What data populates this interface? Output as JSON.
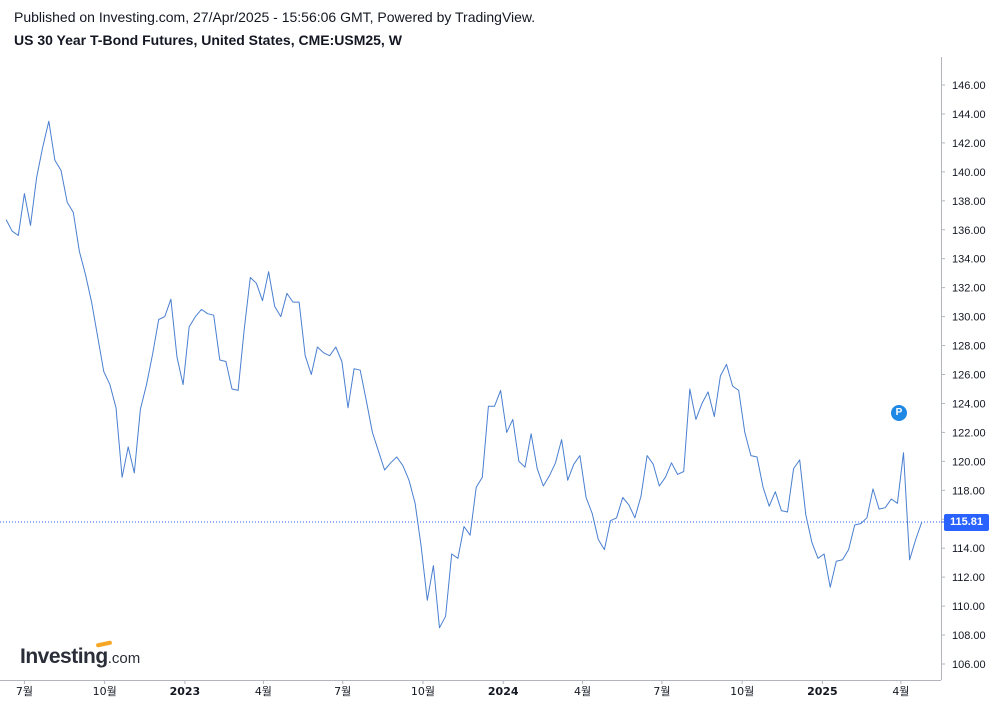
{
  "header": {
    "published": "Published on Investing.com, 27/Apr/2025 - 15:56:06 GMT, Powered by TradingView.",
    "title": "US 30 Year T-Bond Futures, United States, CME:USM25, W"
  },
  "logo": {
    "brand": "Investing",
    "suffix": ".com"
  },
  "price_badge": "P",
  "chart_data": {
    "type": "line",
    "title": "US 30 Year T-Bond Futures, United States, CME:USM25, W",
    "xlabel": "",
    "ylabel": "",
    "ylim": [
      105,
      147
    ],
    "y_ticks": [
      "106.00",
      "108.00",
      "110.00",
      "112.00",
      "114.00",
      "116.00",
      "118.00",
      "120.00",
      "122.00",
      "124.00",
      "126.00",
      "128.00",
      "130.00",
      "132.00",
      "134.00",
      "136.00",
      "138.00",
      "140.00",
      "142.00",
      "144.00",
      "146.00"
    ],
    "x_ticks": [
      {
        "label": "7월",
        "date": "2022-07-01",
        "bold": false
      },
      {
        "label": "10월",
        "date": "2022-10-01",
        "bold": false
      },
      {
        "label": "2023",
        "date": "2023-01-01",
        "bold": true
      },
      {
        "label": "4월",
        "date": "2023-04-01",
        "bold": false
      },
      {
        "label": "7월",
        "date": "2023-07-01",
        "bold": false
      },
      {
        "label": "10월",
        "date": "2023-10-01",
        "bold": false
      },
      {
        "label": "2024",
        "date": "2024-01-01",
        "bold": true
      },
      {
        "label": "4월",
        "date": "2024-04-01",
        "bold": false
      },
      {
        "label": "7월",
        "date": "2024-07-01",
        "bold": false
      },
      {
        "label": "10월",
        "date": "2024-10-01",
        "bold": false
      },
      {
        "label": "2025",
        "date": "2025-01-01",
        "bold": true
      },
      {
        "label": "4월",
        "date": "2025-04-01",
        "bold": false
      }
    ],
    "xlim": [
      "2022-06-03",
      "2025-05-17"
    ],
    "last_price": 115.81,
    "last_price_label": "115.81",
    "colors": {
      "line": "#4a7fd0",
      "price_line": "#2962ff",
      "price_tag": "#2962ff",
      "grid_axis": "#b2b5be"
    },
    "grid": false,
    "series": [
      {
        "values": [
          {
            "x": "2022-06-10",
            "y": 136.7
          },
          {
            "x": "2022-06-17",
            "y": 135.9
          },
          {
            "x": "2022-06-24",
            "y": 135.6
          },
          {
            "x": "2022-07-01",
            "y": 138.5
          },
          {
            "x": "2022-07-08",
            "y": 136.3
          },
          {
            "x": "2022-07-15",
            "y": 139.6
          },
          {
            "x": "2022-07-22",
            "y": 141.7
          },
          {
            "x": "2022-07-29",
            "y": 143.5
          },
          {
            "x": "2022-08-05",
            "y": 140.8
          },
          {
            "x": "2022-08-12",
            "y": 140.1
          },
          {
            "x": "2022-08-19",
            "y": 137.9
          },
          {
            "x": "2022-08-26",
            "y": 137.2
          },
          {
            "x": "2022-09-02",
            "y": 134.5
          },
          {
            "x": "2022-09-09",
            "y": 132.9
          },
          {
            "x": "2022-09-16",
            "y": 131.0
          },
          {
            "x": "2022-09-23",
            "y": 128.6
          },
          {
            "x": "2022-09-30",
            "y": 126.2
          },
          {
            "x": "2022-10-07",
            "y": 125.3
          },
          {
            "x": "2022-10-14",
            "y": 123.7
          },
          {
            "x": "2022-10-21",
            "y": 118.9
          },
          {
            "x": "2022-10-28",
            "y": 121.0
          },
          {
            "x": "2022-11-04",
            "y": 119.2
          },
          {
            "x": "2022-11-11",
            "y": 123.6
          },
          {
            "x": "2022-11-18",
            "y": 125.3
          },
          {
            "x": "2022-11-25",
            "y": 127.4
          },
          {
            "x": "2022-12-02",
            "y": 129.8
          },
          {
            "x": "2022-12-09",
            "y": 130.0
          },
          {
            "x": "2022-12-16",
            "y": 131.2
          },
          {
            "x": "2022-12-23",
            "y": 127.2
          },
          {
            "x": "2022-12-30",
            "y": 125.3
          },
          {
            "x": "2023-01-06",
            "y": 129.3
          },
          {
            "x": "2023-01-13",
            "y": 130.0
          },
          {
            "x": "2023-01-20",
            "y": 130.5
          },
          {
            "x": "2023-01-27",
            "y": 130.2
          },
          {
            "x": "2023-02-03",
            "y": 130.1
          },
          {
            "x": "2023-02-10",
            "y": 127.0
          },
          {
            "x": "2023-02-17",
            "y": 126.9
          },
          {
            "x": "2023-02-24",
            "y": 125.0
          },
          {
            "x": "2023-03-03",
            "y": 124.9
          },
          {
            "x": "2023-03-10",
            "y": 129.1
          },
          {
            "x": "2023-03-17",
            "y": 132.7
          },
          {
            "x": "2023-03-24",
            "y": 132.3
          },
          {
            "x": "2023-03-31",
            "y": 131.1
          },
          {
            "x": "2023-04-07",
            "y": 133.1
          },
          {
            "x": "2023-04-14",
            "y": 130.7
          },
          {
            "x": "2023-04-21",
            "y": 130.0
          },
          {
            "x": "2023-04-28",
            "y": 131.6
          },
          {
            "x": "2023-05-05",
            "y": 131.0
          },
          {
            "x": "2023-05-12",
            "y": 131.0
          },
          {
            "x": "2023-05-19",
            "y": 127.3
          },
          {
            "x": "2023-05-26",
            "y": 126.0
          },
          {
            "x": "2023-06-02",
            "y": 127.9
          },
          {
            "x": "2023-06-09",
            "y": 127.5
          },
          {
            "x": "2023-06-16",
            "y": 127.3
          },
          {
            "x": "2023-06-23",
            "y": 127.9
          },
          {
            "x": "2023-06-30",
            "y": 126.9
          },
          {
            "x": "2023-07-07",
            "y": 123.7
          },
          {
            "x": "2023-07-14",
            "y": 126.4
          },
          {
            "x": "2023-07-21",
            "y": 126.3
          },
          {
            "x": "2023-07-28",
            "y": 124.2
          },
          {
            "x": "2023-08-04",
            "y": 122.0
          },
          {
            "x": "2023-08-11",
            "y": 120.7
          },
          {
            "x": "2023-08-18",
            "y": 119.4
          },
          {
            "x": "2023-08-25",
            "y": 119.9
          },
          {
            "x": "2023-09-01",
            "y": 120.3
          },
          {
            "x": "2023-09-08",
            "y": 119.7
          },
          {
            "x": "2023-09-15",
            "y": 118.7
          },
          {
            "x": "2023-09-22",
            "y": 117.1
          },
          {
            "x": "2023-09-29",
            "y": 114.1
          },
          {
            "x": "2023-10-06",
            "y": 110.4
          },
          {
            "x": "2023-10-13",
            "y": 112.8
          },
          {
            "x": "2023-10-20",
            "y": 108.5
          },
          {
            "x": "2023-10-27",
            "y": 109.3
          },
          {
            "x": "2023-11-03",
            "y": 113.6
          },
          {
            "x": "2023-11-10",
            "y": 113.3
          },
          {
            "x": "2023-11-17",
            "y": 115.5
          },
          {
            "x": "2023-11-24",
            "y": 114.9
          },
          {
            "x": "2023-12-01",
            "y": 118.2
          },
          {
            "x": "2023-12-08",
            "y": 118.9
          },
          {
            "x": "2023-12-15",
            "y": 123.8
          },
          {
            "x": "2023-12-22",
            "y": 123.8
          },
          {
            "x": "2023-12-29",
            "y": 124.9
          },
          {
            "x": "2024-01-05",
            "y": 122.0
          },
          {
            "x": "2024-01-12",
            "y": 122.9
          },
          {
            "x": "2024-01-19",
            "y": 120.0
          },
          {
            "x": "2024-01-26",
            "y": 119.6
          },
          {
            "x": "2024-02-02",
            "y": 121.9
          },
          {
            "x": "2024-02-09",
            "y": 119.5
          },
          {
            "x": "2024-02-16",
            "y": 118.3
          },
          {
            "x": "2024-02-23",
            "y": 119.0
          },
          {
            "x": "2024-03-01",
            "y": 119.9
          },
          {
            "x": "2024-03-08",
            "y": 121.5
          },
          {
            "x": "2024-03-15",
            "y": 118.7
          },
          {
            "x": "2024-03-22",
            "y": 119.8
          },
          {
            "x": "2024-03-29",
            "y": 120.4
          },
          {
            "x": "2024-04-05",
            "y": 117.5
          },
          {
            "x": "2024-04-12",
            "y": 116.4
          },
          {
            "x": "2024-04-19",
            "y": 114.6
          },
          {
            "x": "2024-04-26",
            "y": 113.9
          },
          {
            "x": "2024-05-03",
            "y": 115.9
          },
          {
            "x": "2024-05-10",
            "y": 116.1
          },
          {
            "x": "2024-05-17",
            "y": 117.5
          },
          {
            "x": "2024-05-24",
            "y": 117.0
          },
          {
            "x": "2024-05-31",
            "y": 116.1
          },
          {
            "x": "2024-06-07",
            "y": 117.6
          },
          {
            "x": "2024-06-14",
            "y": 120.4
          },
          {
            "x": "2024-06-21",
            "y": 119.8
          },
          {
            "x": "2024-06-28",
            "y": 118.3
          },
          {
            "x": "2024-07-05",
            "y": 118.9
          },
          {
            "x": "2024-07-12",
            "y": 119.9
          },
          {
            "x": "2024-07-19",
            "y": 119.1
          },
          {
            "x": "2024-07-26",
            "y": 119.3
          },
          {
            "x": "2024-08-02",
            "y": 125.0
          },
          {
            "x": "2024-08-09",
            "y": 122.9
          },
          {
            "x": "2024-08-16",
            "y": 124.0
          },
          {
            "x": "2024-08-23",
            "y": 124.8
          },
          {
            "x": "2024-08-30",
            "y": 123.1
          },
          {
            "x": "2024-09-06",
            "y": 125.9
          },
          {
            "x": "2024-09-13",
            "y": 126.7
          },
          {
            "x": "2024-09-20",
            "y": 125.2
          },
          {
            "x": "2024-09-27",
            "y": 124.9
          },
          {
            "x": "2024-10-04",
            "y": 122.0
          },
          {
            "x": "2024-10-11",
            "y": 120.4
          },
          {
            "x": "2024-10-18",
            "y": 120.3
          },
          {
            "x": "2024-10-25",
            "y": 118.2
          },
          {
            "x": "2024-11-01",
            "y": 116.9
          },
          {
            "x": "2024-11-08",
            "y": 117.9
          },
          {
            "x": "2024-11-15",
            "y": 116.6
          },
          {
            "x": "2024-11-22",
            "y": 116.5
          },
          {
            "x": "2024-11-29",
            "y": 119.5
          },
          {
            "x": "2024-12-06",
            "y": 120.1
          },
          {
            "x": "2024-12-13",
            "y": 116.3
          },
          {
            "x": "2024-12-20",
            "y": 114.4
          },
          {
            "x": "2024-12-27",
            "y": 113.3
          },
          {
            "x": "2025-01-03",
            "y": 113.6
          },
          {
            "x": "2025-01-10",
            "y": 111.3
          },
          {
            "x": "2025-01-17",
            "y": 113.1
          },
          {
            "x": "2025-01-24",
            "y": 113.2
          },
          {
            "x": "2025-01-31",
            "y": 113.9
          },
          {
            "x": "2025-02-07",
            "y": 115.6
          },
          {
            "x": "2025-02-14",
            "y": 115.7
          },
          {
            "x": "2025-02-21",
            "y": 116.1
          },
          {
            "x": "2025-02-28",
            "y": 118.1
          },
          {
            "x": "2025-03-07",
            "y": 116.7
          },
          {
            "x": "2025-03-14",
            "y": 116.8
          },
          {
            "x": "2025-03-21",
            "y": 117.4
          },
          {
            "x": "2025-03-28",
            "y": 117.1
          },
          {
            "x": "2025-04-04",
            "y": 120.6
          },
          {
            "x": "2025-04-11",
            "y": 113.2
          },
          {
            "x": "2025-04-18",
            "y": 114.6
          },
          {
            "x": "2025-04-25",
            "y": 115.81
          }
        ]
      }
    ]
  }
}
